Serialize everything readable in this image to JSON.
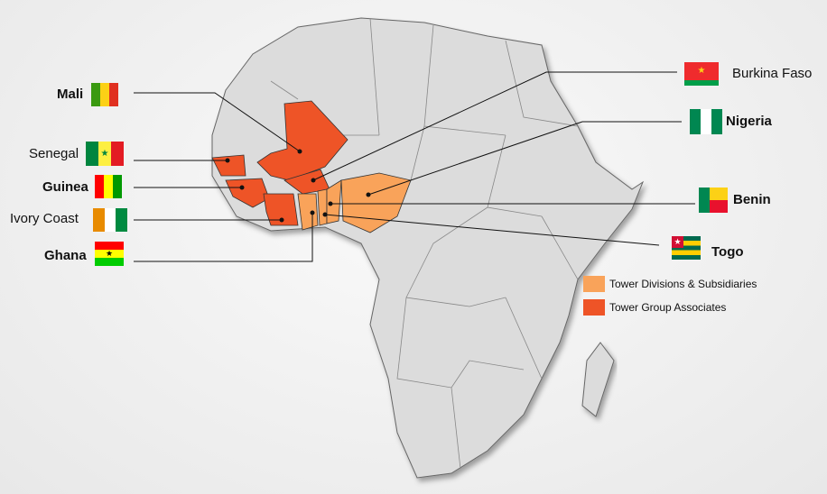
{
  "colors": {
    "divisions": "#f9a35a",
    "associates": "#ee5427",
    "land": "#dcdcdc",
    "border": "#555555"
  },
  "countries": [
    {
      "name": "Mali",
      "group": "associates"
    },
    {
      "name": "Senegal",
      "group": "associates"
    },
    {
      "name": "Guinea",
      "group": "associates"
    },
    {
      "name": "Ivory Coast",
      "group": "associates"
    },
    {
      "name": "Ghana",
      "group": "divisions"
    },
    {
      "name": "Burkina Faso",
      "group": "associates"
    },
    {
      "name": "Nigeria",
      "group": "divisions"
    },
    {
      "name": "Benin",
      "group": "divisions"
    },
    {
      "name": "Togo",
      "group": "divisions"
    }
  ],
  "legend": [
    {
      "label": "Tower Divisions & Subsidiaries",
      "color": "#f9a35a"
    },
    {
      "label": "Tower Group Associates",
      "color": "#ee5427"
    }
  ]
}
